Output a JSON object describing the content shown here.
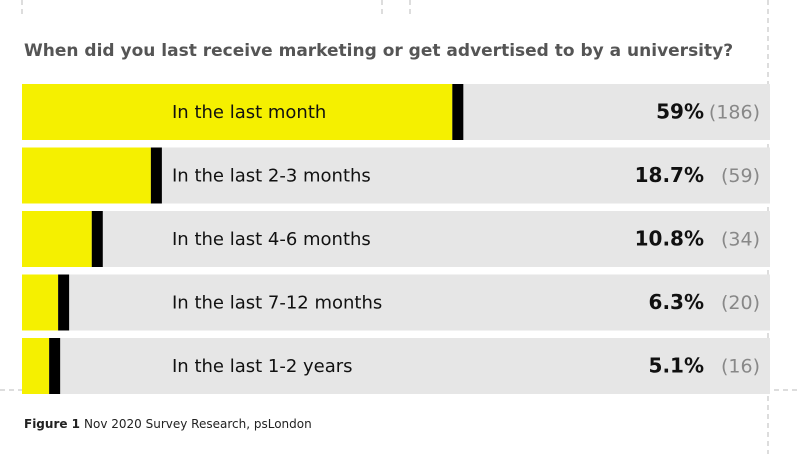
{
  "chart_data": {
    "type": "bar",
    "orientation": "horizontal",
    "title": "When did you last receive marketing or get advertised to by a university?",
    "categories": [
      "In the last month",
      "In the last 2-3 months",
      "In the last 4-6 months",
      "In the last 7-12 months",
      "In the last 1-2 years"
    ],
    "values": [
      59,
      18.7,
      10.8,
      6.3,
      5.1
    ],
    "value_labels": [
      "59%",
      "18.7%",
      "10.8%",
      "6.3%",
      "5.1%"
    ],
    "counts": [
      "(186)",
      "(59)",
      "(34)",
      "(20)",
      "(16)"
    ],
    "xlim": [
      0,
      100
    ],
    "color": "#f5f000",
    "cap_color": "#000000",
    "track_color": "#e6e6e6",
    "caption_label": "Figure 1",
    "caption": "Nov 2020 Survey Research, psLondon"
  }
}
